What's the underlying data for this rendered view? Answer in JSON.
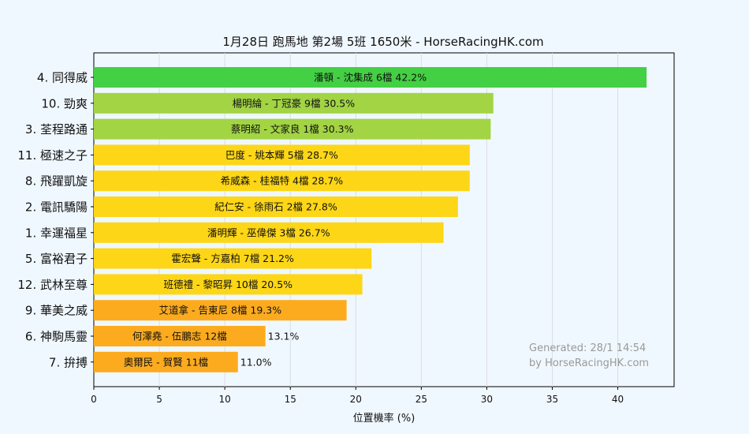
{
  "chart_data": {
    "type": "bar",
    "orientation": "horizontal",
    "title": "1月28日  跑馬地  第2場  5班  1650米 - HorseRacingHK.com",
    "xlabel": "位置機率 (%)",
    "ylabel": "",
    "xlim": [
      0,
      44.3
    ],
    "xticks": [
      0,
      5,
      10,
      15,
      20,
      25,
      30,
      35,
      40
    ],
    "grid": "vertical",
    "categories": [
      "4. 同得威",
      "10. 勁爽",
      "3. 荃程路通",
      "11. 極速之子",
      "8. 飛躍凱旋",
      "2. 電訊驕陽",
      "1. 幸運福星",
      "5. 富裕君子",
      "12. 武林至尊",
      "9. 華美之威",
      "6. 神駒馬靈",
      "7. 拚搏"
    ],
    "values": [
      42.2,
      30.5,
      30.3,
      28.7,
      28.7,
      27.8,
      26.7,
      21.2,
      20.5,
      19.3,
      13.1,
      11.0
    ],
    "bar_labels": [
      "潘頓 - 沈集成 6檔  42.2%",
      "楊明綸 - 丁冠豪 9檔  30.5%",
      "蔡明紹 - 文家良 1檔  30.3%",
      "巴度 - 姚本輝 5檔  28.7%",
      "希威森 - 桂福特 4檔  28.7%",
      "紀仁安 - 徐雨石 2檔  27.8%",
      "潘明輝 - 巫偉傑 3檔  26.7%",
      "霍宏聲 - 方嘉柏 7檔  21.2%",
      "班德禮 - 黎昭昇 10檔  20.5%",
      "艾道拿 - 告東尼 8檔  19.3%",
      "何澤堯 - 伍鵬志 12檔",
      "奧爾民 - 賀賢 11檔"
    ],
    "outside_labels": [
      "",
      "",
      "",
      "",
      "",
      "",
      "",
      "",
      "",
      "",
      "13.1%",
      "11.0%"
    ],
    "colors": [
      "#44d044",
      "#a2d444",
      "#a2d444",
      "#fdd617",
      "#fdd617",
      "#fdd617",
      "#fdd617",
      "#fdd617",
      "#fdd617",
      "#fcab1f",
      "#fcab1f",
      "#fcab1f"
    ],
    "watermark": [
      "Generated: 28/1 14:54",
      "by HorseRacingHK.com"
    ]
  }
}
